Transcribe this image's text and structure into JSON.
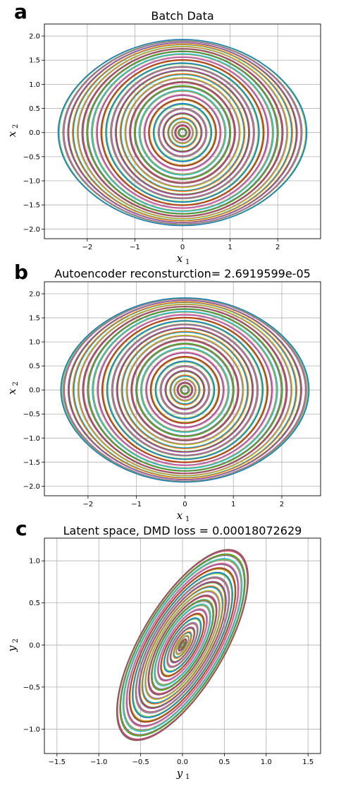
{
  "chart_data": [
    {
      "type": "line",
      "panel_letter": "a",
      "title": "Batch Data",
      "xlabel": "x",
      "xlabel_sub": "1",
      "ylabel": "x",
      "ylabel_sub": "2",
      "xlim": [
        -2.9,
        2.9
      ],
      "ylim": [
        -2.2,
        2.25
      ],
      "xticks": [
        -2,
        -1,
        0,
        1,
        2
      ],
      "xtick_labels": [
        "−2",
        "−1",
        "0",
        "1",
        "2"
      ],
      "yticks": [
        -2.0,
        -1.5,
        -1.0,
        -0.5,
        0.0,
        0.5,
        1.0,
        1.5,
        2.0
      ],
      "ytick_labels": [
        "−2.0",
        "−1.5",
        "−1.0",
        "−0.5",
        "0.0",
        "0.5",
        "1.0",
        "1.5",
        "2.0"
      ],
      "grid": true,
      "series_description": "family of closed phase-portrait orbits (nonlinear pendulum trajectories) centered at origin",
      "amplitudes": [
        0.08,
        0.15,
        0.22,
        0.3,
        0.4,
        0.5,
        0.6,
        0.7,
        0.8,
        0.9,
        1.0,
        1.1,
        1.2,
        1.3,
        1.4,
        1.5,
        1.6,
        1.7,
        1.8,
        1.9,
        2.0,
        2.1,
        2.2,
        2.3,
        2.4,
        2.5,
        2.6
      ],
      "colors": [
        "#1f77b4",
        "#ff7f0e",
        "#2ca02c",
        "#d62728",
        "#9467bd",
        "#8c564b",
        "#e377c2",
        "#7f7f7f",
        "#bcbd22",
        "#17becf"
      ]
    },
    {
      "type": "line",
      "panel_letter": "b",
      "title": "Autoencoder reconsturction= 2.6919599e-05",
      "xlabel": "x",
      "xlabel_sub": "1",
      "ylabel": "x",
      "ylabel_sub": "2",
      "xlim": [
        -2.9,
        2.8
      ],
      "ylim": [
        -2.2,
        2.25
      ],
      "xticks": [
        -2,
        -1,
        0,
        1,
        2
      ],
      "xtick_labels": [
        "−2",
        "−1",
        "0",
        "1",
        "2"
      ],
      "yticks": [
        -2.0,
        -1.5,
        -1.0,
        -0.5,
        0.0,
        0.5,
        1.0,
        1.5,
        2.0
      ],
      "ytick_labels": [
        "−2.0",
        "−1.5",
        "−1.0",
        "−0.5",
        "0.0",
        "0.5",
        "1.0",
        "1.5",
        "2.0"
      ],
      "grid": true,
      "series_description": "reconstructed phase-portrait orbits",
      "amplitudes": [
        0.08,
        0.15,
        0.22,
        0.3,
        0.4,
        0.5,
        0.6,
        0.7,
        0.8,
        0.9,
        1.0,
        1.1,
        1.2,
        1.3,
        1.4,
        1.5,
        1.6,
        1.7,
        1.8,
        1.9,
        2.0,
        2.1,
        2.2,
        2.3,
        2.4,
        2.5,
        2.55
      ],
      "colors": [
        "#1f77b4",
        "#ff7f0e",
        "#2ca02c",
        "#d62728",
        "#9467bd",
        "#8c564b",
        "#e377c2",
        "#7f7f7f",
        "#bcbd22",
        "#17becf"
      ]
    },
    {
      "type": "line",
      "panel_letter": "c",
      "title": "Latent space, DMD loss = 0.00018072629",
      "xlabel": "y",
      "xlabel_sub": "1",
      "ylabel": "y",
      "ylabel_sub": "2",
      "xlim": [
        -1.65,
        1.65
      ],
      "ylim": [
        -1.29,
        1.27
      ],
      "xticks": [
        -1.5,
        -1.0,
        -0.5,
        0.0,
        0.5,
        1.0,
        1.5
      ],
      "xtick_labels": [
        "−1.5",
        "−1.0",
        "−0.5",
        "0.0",
        "0.5",
        "1.0",
        "1.5"
      ],
      "yticks": [
        -1.0,
        -0.5,
        0.0,
        0.5,
        1.0
      ],
      "ytick_labels": [
        "−1.0",
        "−0.5",
        "0.0",
        "0.5",
        "1.0"
      ],
      "grid": true,
      "series_description": "tilted elliptical latent-space orbits",
      "amplitudes": [
        0.03,
        0.06,
        0.1,
        0.14,
        0.19,
        0.24,
        0.29,
        0.34,
        0.39,
        0.44,
        0.49,
        0.54,
        0.59,
        0.64,
        0.69,
        0.74,
        0.79,
        0.84,
        0.89,
        0.94,
        0.99,
        1.04
      ],
      "colors": [
        "#1f77b4",
        "#ff7f0e",
        "#2ca02c",
        "#d62728",
        "#9467bd",
        "#8c564b",
        "#e377c2",
        "#7f7f7f",
        "#bcbd22",
        "#17becf"
      ]
    }
  ]
}
